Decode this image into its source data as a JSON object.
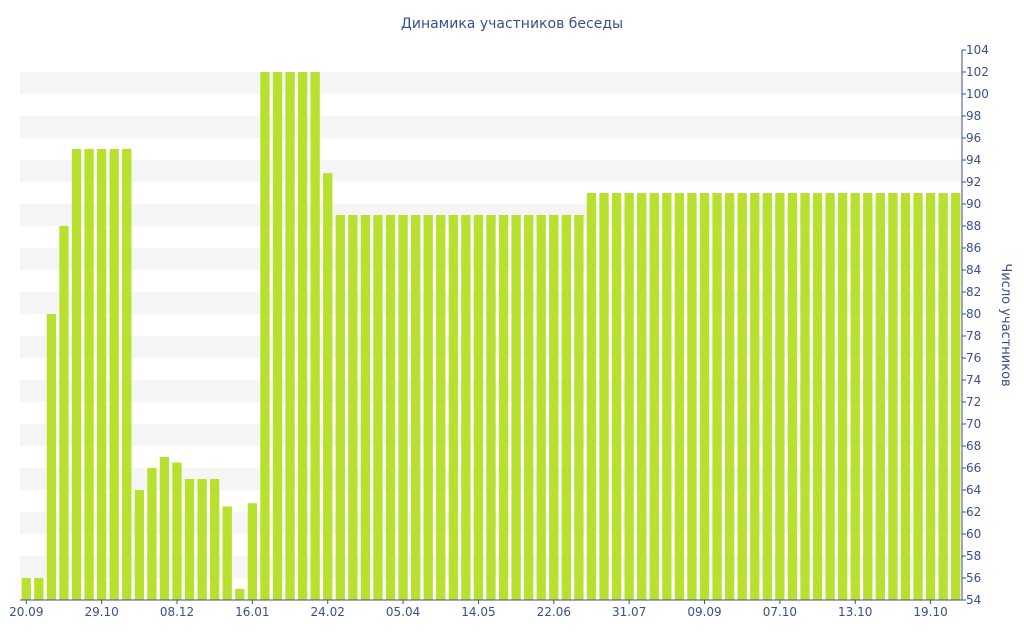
{
  "chart_data": {
    "type": "bar",
    "title": "Динамика участников беседы",
    "ylabel": "Число участников",
    "xlabel": "",
    "ylim": [
      54,
      104
    ],
    "yticks": [
      54,
      56,
      58,
      60,
      62,
      64,
      66,
      68,
      70,
      72,
      74,
      76,
      78,
      80,
      82,
      84,
      86,
      88,
      90,
      92,
      94,
      96,
      98,
      100,
      102,
      104
    ],
    "x_tick_labels": [
      {
        "index": 0,
        "label": "20.09"
      },
      {
        "index": 6,
        "label": "29.10"
      },
      {
        "index": 12,
        "label": "08.12"
      },
      {
        "index": 18,
        "label": "16.01"
      },
      {
        "index": 24,
        "label": "24.02"
      },
      {
        "index": 30,
        "label": "05.04"
      },
      {
        "index": 36,
        "label": "14.05"
      },
      {
        "index": 42,
        "label": "22.06"
      },
      {
        "index": 48,
        "label": "31.07"
      },
      {
        "index": 54,
        "label": "09.09"
      },
      {
        "index": 60,
        "label": "07.10"
      },
      {
        "index": 66,
        "label": "13.10"
      },
      {
        "index": 72,
        "label": "19.10"
      }
    ],
    "bar_color": "#b8e02e",
    "band_color": "#f5f5f5",
    "axis_color": "#3a4f8f",
    "grid_bands": true,
    "values": [
      56,
      56,
      80,
      88,
      95,
      95,
      95,
      95,
      95,
      64,
      66,
      67,
      66.5,
      65,
      65,
      65,
      62.5,
      55,
      62.8,
      102,
      102,
      102,
      102,
      102,
      92.8,
      89,
      89,
      89,
      89,
      89,
      89,
      89,
      89,
      89,
      89,
      89,
      89,
      89,
      89,
      89,
      89,
      89,
      89,
      89,
      89,
      91,
      91,
      91,
      91,
      91,
      91,
      91,
      91,
      91,
      91,
      91,
      91,
      91,
      91,
      91,
      91,
      91,
      91,
      91,
      91,
      91,
      91,
      91,
      91,
      91,
      91,
      91,
      91,
      91,
      91
    ]
  }
}
